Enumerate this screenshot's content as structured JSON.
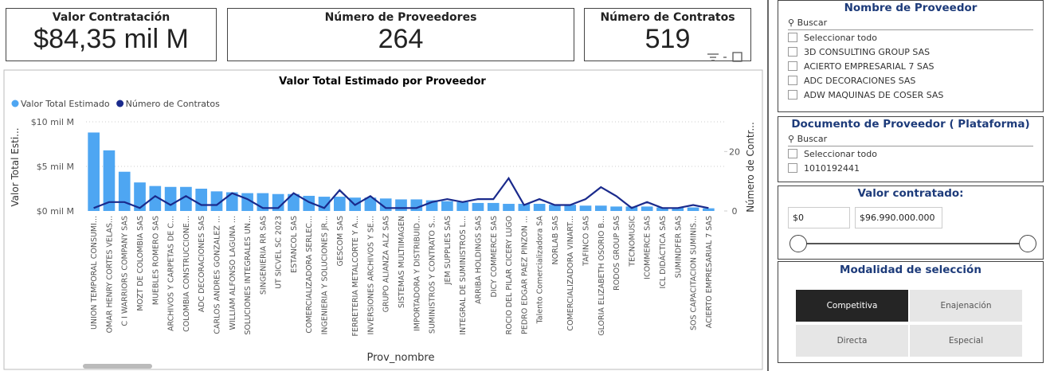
{
  "cards": [
    {
      "title": "Valor Contratación",
      "value": "$84,35 mil M"
    },
    {
      "title": "Número de Proveedores",
      "value": "264"
    },
    {
      "title": "Número de Contratos",
      "value": "519"
    }
  ],
  "chart_data": {
    "type": "bar_line",
    "title": "Valor Total Estimado por Proveedor",
    "x_label": "Prov_nombre",
    "y_label": "Valor Total Esti...",
    "y2_label": "Número de Contr...",
    "categories": [
      "UNION TEMPORAL CONSUMI...",
      "OMAR HENRY CORTES VELAS...",
      "C I WARRIORS COMPANY SAS",
      "MOZT DE COLOMBIA SAS",
      "MUEBLES ROMERO SAS",
      "ARCHIVOS Y CARPETAS DE C...",
      "COLOMBIA CONSTRUCCIONE...",
      "ADC DECORACIONES SAS",
      "CARLOS ANDRES GONZALEZ ...",
      "WILLIAM ALFONSO LAGUNA ...",
      "SOLUCIONES INTEGRALES UN...",
      "SINGENIERIA RR SAS",
      "UT SICVEL SC 2023",
      "ESTANCOL SAS",
      "COMERCIALIZADORA SERLEC...",
      "INGENIERIA Y SOLUCIONES JR...",
      "GESCOM SAS",
      "FERRETERIA METALCORTE Y A...",
      "INVERSIONES ARCHIVOS Y SE...",
      "GRUPO ALIANZA ALZ SAS",
      "SISTEMAS MULTIIMAGEN",
      "IMPORTADORA Y DISTRIBUID...",
      "SUMINISTROS Y CONTRATO S...",
      "JEM SUPPLIES SAS",
      "INTEGRAL DE SUMINISTROS L...",
      "ARRIBA HOLDINGS SAS",
      "DICY COMMERCE SAS",
      "ROCIO DEL PILAR CICERY LUGO",
      "PEDRO EDGAR PAEZ PINZON ...",
      "Talento Comercializadora SA",
      "NORLAB SAS",
      "COMERCIALIZADORA VINART...",
      "TAFINCO SAS",
      "GLORIA ELIZABETH OSORIO B...",
      "RODOS GROUP SAS",
      "TECNOMUSIC",
      "ICOMMERCE SAS",
      "ICL DIDÁCTICA SAS",
      "SUMINDFER SAS",
      "SOS CAPACITACION SUMINIS...",
      "ACIERTO EMPRESARIAL 7 SAS"
    ],
    "series": [
      {
        "name": "Valor Total Estimado",
        "color": "#4ea6f2",
        "values": [
          8.8,
          6.8,
          4.4,
          3.2,
          2.8,
          2.7,
          2.7,
          2.5,
          2.2,
          2.1,
          2.0,
          2.0,
          1.9,
          1.9,
          1.7,
          1.6,
          1.6,
          1.5,
          1.5,
          1.4,
          1.3,
          1.3,
          1.2,
          1.1,
          1.0,
          0.9,
          0.9,
          0.8,
          0.8,
          0.8,
          0.7,
          0.7,
          0.6,
          0.6,
          0.5,
          0.5,
          0.5,
          0.4,
          0.4,
          0.4,
          0.3
        ]
      },
      {
        "name": "Número de Contratos",
        "color": "#1a2a8c",
        "axis": "y2",
        "values": [
          1,
          3,
          3,
          1,
          5,
          2,
          5,
          2,
          2,
          6,
          4,
          1,
          1,
          6,
          3,
          1,
          7,
          2,
          5,
          1,
          1,
          1,
          3,
          4,
          3,
          4,
          4,
          11,
          2,
          4,
          2,
          2,
          4,
          8,
          5,
          1,
          3,
          1,
          1,
          2,
          1
        ]
      }
    ],
    "ylim": [
      0,
      10
    ],
    "yticks": [
      {
        "value": 0,
        "label": "$0 mil M"
      },
      {
        "value": 5,
        "label": "$5 mil M"
      },
      {
        "value": 10,
        "label": "$10 mil M"
      }
    ],
    "y2lim": [
      0,
      30
    ],
    "y2ticks": [
      0,
      20
    ],
    "grid": true,
    "legend": "top-left"
  },
  "slicers": {
    "proveedor": {
      "title": "Nombre de Proveedor",
      "search": "Buscar",
      "items": [
        "Seleccionar todo",
        "3D CONSULTING GROUP SAS",
        "ACIERTO EMPRESARIAL 7 SAS",
        "ADC DECORACIONES SAS",
        "ADW MAQUINAS DE COSER SAS"
      ]
    },
    "documento": {
      "title": "Documento de Proveedor ( Plataforma)",
      "search": "Buscar",
      "items": [
        "Seleccionar todo",
        "1010192441"
      ]
    },
    "valor": {
      "title": "Valor contratado:",
      "min": "$0",
      "max": "$96.990.000.000"
    },
    "modalidad": {
      "title": "Modalidad de selección",
      "options": [
        "Competitiva",
        "Enajenación",
        "Directa",
        "Especial"
      ],
      "selected": "Competitiva"
    }
  }
}
